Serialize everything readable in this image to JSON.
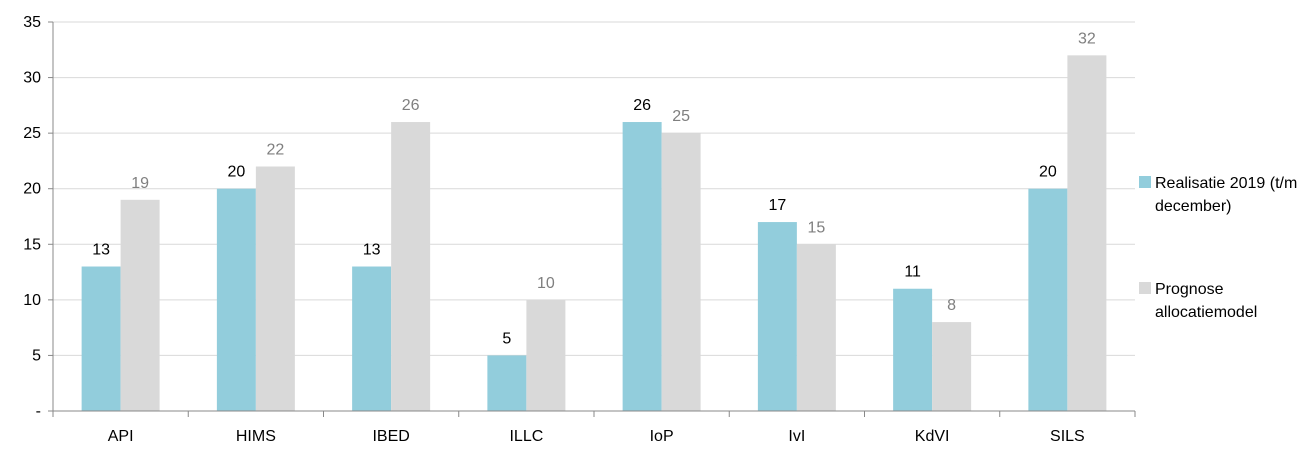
{
  "chart_data": {
    "type": "bar",
    "categories": [
      "API",
      "HIMS",
      "IBED",
      "ILLC",
      "IoP",
      "IvI",
      "KdVI",
      "SILS"
    ],
    "series": [
      {
        "name": "Realisatie 2019 (t/m december)",
        "legend_lines": [
          "Realisatie 2019 (t/m",
          "december)"
        ],
        "values": [
          13,
          20,
          13,
          5,
          26,
          17,
          11,
          20
        ],
        "color": "#92CDDC",
        "label_color": "#000000"
      },
      {
        "name": "Prognose allocatiemodel",
        "legend_lines": [
          "Prognose",
          "allocatiemodel"
        ],
        "values": [
          19,
          22,
          26,
          10,
          25,
          15,
          8,
          32
        ],
        "color": "#D9D9D9",
        "label_color": "#7F7F7F"
      }
    ],
    "yticks": [
      "-",
      "5",
      "10",
      "15",
      "20",
      "25",
      "30",
      "35"
    ],
    "ylim": [
      0,
      35
    ],
    "grid": true,
    "grid_color": "#D9D9D9",
    "axis_color": "#888888",
    "legend_position": "right",
    "title": "",
    "xlabel": "",
    "ylabel": ""
  }
}
